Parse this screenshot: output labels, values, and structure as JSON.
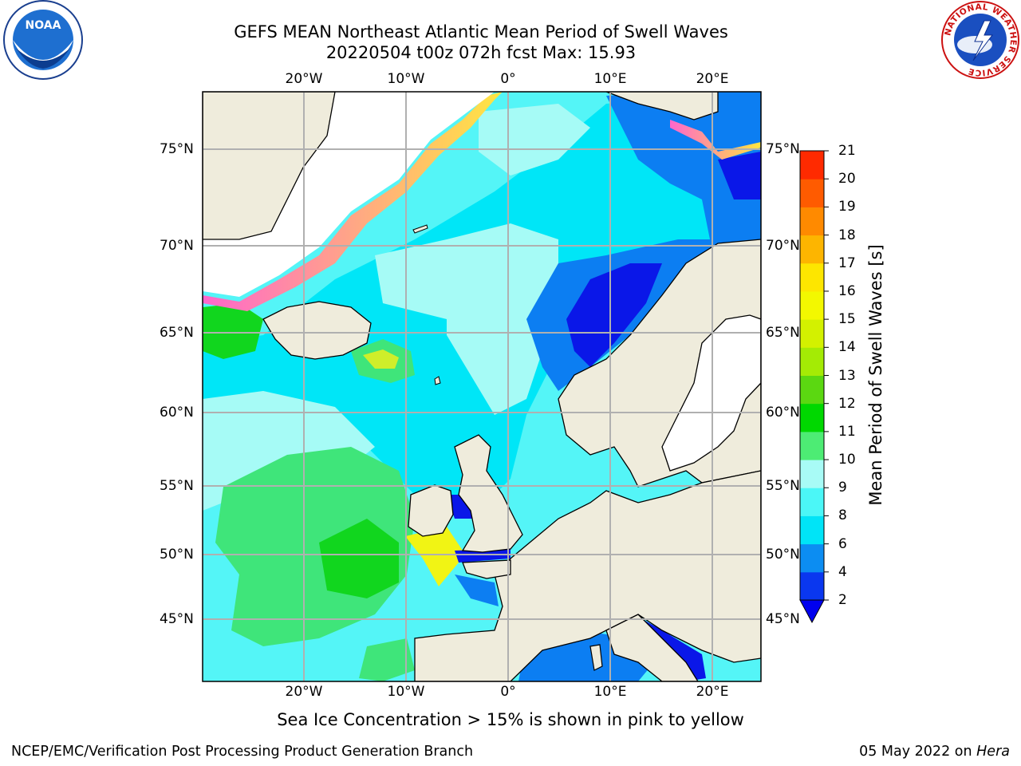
{
  "title_line1": "GEFS MEAN Northeast Atlantic Mean Period of Swell Waves",
  "title_line2": "20220504 t00z 072h fcst   Max: 15.93",
  "noaa_logo_text": "NOAA",
  "nws_logo_text": "NATIONAL WEATHER SERVICE",
  "longitude_labels": [
    "20°W",
    "10°W",
    "0°",
    "10°E",
    "20°E"
  ],
  "latitude_labels": [
    "75°N",
    "70°N",
    "65°N",
    "60°N",
    "55°N",
    "50°N",
    "45°N"
  ],
  "colorbar": {
    "title": "Mean Period of Swell Waves [s]",
    "tick_labels": [
      "2",
      "4",
      "6",
      "8",
      "9",
      "10",
      "11",
      "12",
      "13",
      "14",
      "15",
      "16",
      "17",
      "18",
      "19",
      "20",
      "21"
    ],
    "colors": [
      "#0a37ef",
      "#0c8df2",
      "#00e4f7",
      "#4bf7f7",
      "#a8fbf6",
      "#4dec74",
      "#00d800",
      "#5bd811",
      "#a4eb05",
      "#d3f100",
      "#f3f800",
      "#fde600",
      "#fdb500",
      "#ff8a00",
      "#ff5b00",
      "#ff2a00"
    ],
    "extend_color": "#0000ee"
  },
  "colors": {
    "land": "#efecdc",
    "deep_blue": "#0a17e8",
    "blue": "#0c7ef2",
    "cyan": "#00e6f7",
    "light_cyan": "#54f5f7",
    "pale_cyan": "#a6fbf6",
    "green": "#3fe57a",
    "bright_green": "#11d61e",
    "yellow": "#f1f414",
    "ice_pink": "#ff66cc",
    "ice_yellow": "#ffe640",
    "grid": "#b0b0b0"
  },
  "footer_note": "Sea Ice Concentration > 15% is shown in pink to yellow",
  "footer_left": "NCEP/EMC/Verification Post Processing Product Generation Branch",
  "footer_right_date": "05 May 2022 on ",
  "footer_right_host": "Hera"
}
